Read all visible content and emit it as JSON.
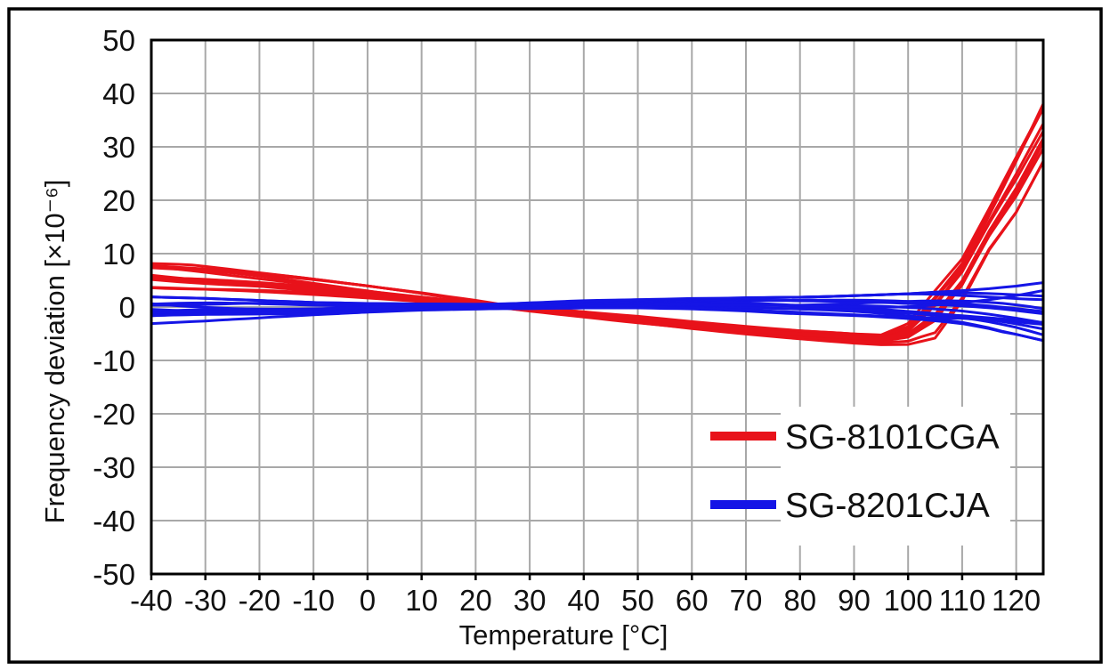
{
  "frame": {
    "background": "#ffffff",
    "border_color": "#000000"
  },
  "chart_data": {
    "type": "line",
    "xlabel": "Temperature [°C]",
    "ylabel": "Frequency deviation [×10⁻⁶]",
    "xlim": [
      -40,
      125
    ],
    "ylim": [
      -50,
      50
    ],
    "x_ticks": [
      -40,
      -30,
      -20,
      -10,
      0,
      10,
      20,
      30,
      40,
      50,
      60,
      70,
      80,
      90,
      100,
      110,
      120
    ],
    "y_ticks": [
      50,
      40,
      30,
      20,
      10,
      0,
      -10,
      -20,
      -30,
      -40,
      -50
    ],
    "grid": true,
    "grid_step_x": 10,
    "grid_step_y": 10,
    "grid_color": "#a8a8a8",
    "axis_color": "#000000",
    "tick_label_color": "#111111",
    "legend": {
      "position": "inside-lower-right",
      "background": "#ffffff"
    },
    "series": [
      {
        "name": "SG-8101CGA",
        "color": "#e8121a",
        "line_count": 12,
        "style": "bundle-of-sample-curves",
        "x": [
          -40,
          -30,
          -20,
          -10,
          0,
          10,
          20,
          25,
          30,
          40,
          50,
          60,
          70,
          80,
          90,
          95,
          100,
          105,
          110,
          115,
          120,
          125
        ],
        "envelope_lower": [
          3.5,
          3.0,
          2.5,
          1.9,
          1.3,
          0.7,
          0.1,
          -0.2,
          -0.8,
          -1.9,
          -3.0,
          -4.1,
          -5.1,
          -6.0,
          -6.8,
          -7.1,
          -7.1,
          -6.0,
          1.0,
          10.5,
          17.5,
          27.0
        ],
        "envelope_upper": [
          8.8,
          7.7,
          6.5,
          5.3,
          4.0,
          2.7,
          1.3,
          0.5,
          0.1,
          -0.7,
          -1.7,
          -2.7,
          -3.6,
          -4.4,
          -5.0,
          -5.2,
          -3.0,
          3.5,
          9.7,
          19.5,
          30.0,
          40.0
        ]
      },
      {
        "name": "SG-8201CJA",
        "color": "#1515e6",
        "line_count": 14,
        "style": "bundle-of-sample-curves",
        "x": [
          -40,
          -30,
          -20,
          -10,
          0,
          10,
          20,
          25,
          30,
          40,
          50,
          60,
          70,
          80,
          90,
          95,
          100,
          105,
          110,
          115,
          120,
          125
        ],
        "envelope_lower": [
          -3.2,
          -2.7,
          -2.1,
          -1.5,
          -1.0,
          -0.6,
          -0.4,
          -0.3,
          -0.3,
          -0.2,
          -0.2,
          -0.4,
          -0.8,
          -1.4,
          -2.1,
          -2.5,
          -2.9,
          -3.3,
          -3.7,
          -4.4,
          -5.3,
          -6.5
        ],
        "envelope_upper": [
          2.0,
          1.7,
          1.3,
          0.9,
          0.7,
          0.6,
          0.6,
          0.7,
          0.9,
          1.3,
          1.6,
          1.8,
          1.8,
          1.9,
          2.2,
          2.4,
          2.6,
          2.9,
          3.2,
          3.6,
          4.1,
          4.8
        ]
      }
    ]
  }
}
